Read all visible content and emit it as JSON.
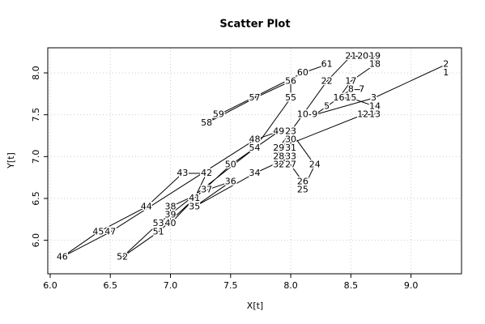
{
  "chart_data": {
    "type": "scatter",
    "title": "Scatter Plot",
    "xlabel": "X[t]",
    "ylabel": "Y[t]",
    "point_labels": [
      "1",
      "2",
      "3",
      "4",
      "5",
      "6",
      "7",
      "8",
      "9",
      "10",
      "11",
      "12",
      "13",
      "14",
      "15",
      "16",
      "17",
      "18",
      "19",
      "20",
      "21",
      "22",
      "23",
      "24",
      "25",
      "26",
      "27",
      "28",
      "29",
      "30",
      "31",
      "32",
      "33",
      "34",
      "35",
      "36",
      "37",
      "38",
      "39",
      "40",
      "41",
      "42",
      "43",
      "44",
      "45",
      "46",
      "47",
      "48",
      "49",
      "50",
      "51",
      "52",
      "53",
      "54",
      "55",
      "56",
      "57",
      "58",
      "59",
      "60",
      "61"
    ],
    "x": [
      9.29,
      9.29,
      8.69,
      8.2,
      8.3,
      8.5,
      8.59,
      8.5,
      8.2,
      8.1,
      7.9,
      8.6,
      8.7,
      8.7,
      8.5,
      8.4,
      8.5,
      8.7,
      8.7,
      8.6,
      8.5,
      8.3,
      8.0,
      8.2,
      8.1,
      8.1,
      8.0,
      7.9,
      7.9,
      8.0,
      8.0,
      7.9,
      8.0,
      7.7,
      7.2,
      7.5,
      7.3,
      7.0,
      7.0,
      7.0,
      7.2,
      7.3,
      7.1,
      6.8,
      6.4,
      6.1,
      6.5,
      7.7,
      7.9,
      7.5,
      6.9,
      6.6,
      6.9,
      7.7,
      8.0,
      8.0,
      7.7,
      7.3,
      7.4,
      8.1,
      8.3
    ],
    "values": [
      8.0,
      8.1,
      7.7,
      7.5,
      7.6,
      7.8,
      7.8,
      7.8,
      7.5,
      7.5,
      7.1,
      7.5,
      7.5,
      7.6,
      7.7,
      7.7,
      7.9,
      8.1,
      8.2,
      8.2,
      8.2,
      7.9,
      7.3,
      6.9,
      6.6,
      6.7,
      6.9,
      7.0,
      7.1,
      7.2,
      7.1,
      6.9,
      7.0,
      6.8,
      6.4,
      6.7,
      6.6,
      6.4,
      6.3,
      6.2,
      6.5,
      6.8,
      6.8,
      6.4,
      6.1,
      5.8,
      6.1,
      7.2,
      7.3,
      6.9,
      6.1,
      5.8,
      6.2,
      7.1,
      7.7,
      7.9,
      7.7,
      7.4,
      7.5,
      8.0,
      8.1
    ],
    "color": "#000000",
    "xlim": [
      5.98,
      9.42
    ],
    "ylim": [
      5.6,
      8.3
    ],
    "xticks": [
      {
        "value": 6,
        "label": "6.0"
      },
      {
        "value": 6.5,
        "label": "6.5"
      },
      {
        "value": 7,
        "label": "7.0"
      },
      {
        "value": 7.5,
        "label": "7.5"
      },
      {
        "value": 8,
        "label": "8.0"
      },
      {
        "value": 8.5,
        "label": "8.5"
      },
      {
        "value": 9,
        "label": "9.0"
      }
    ],
    "yticks": [
      {
        "value": 6,
        "label": "6.0"
      },
      {
        "value": 6.5,
        "label": "6.5"
      },
      {
        "value": 7,
        "label": "7.0"
      },
      {
        "value": 7.5,
        "label": "7.5"
      },
      {
        "value": 8,
        "label": "8.0"
      }
    ],
    "grid": true
  }
}
